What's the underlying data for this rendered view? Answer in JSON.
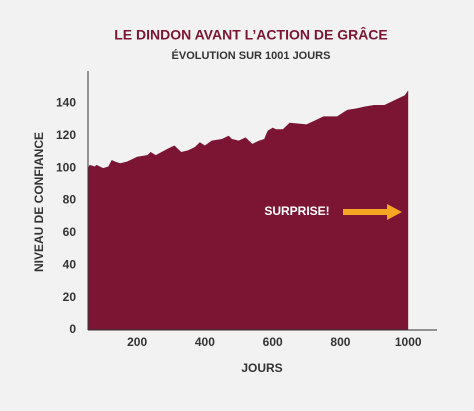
{
  "chart_data": {
    "type": "area",
    "title": "LE DINDON AVANT L’ACTION DE GRÂCE",
    "subtitle": "ÉVOLUTION SUR 1001 JOURS",
    "x_label": "JOURS",
    "y_label": "NIVEAU DE CONFIANCE",
    "annotation": "SURPRISE!",
    "color": "#7b1533",
    "annotation_color": "#f5a623",
    "x": [
      55,
      60,
      75,
      80,
      100,
      115,
      125,
      135,
      150,
      170,
      200,
      230,
      240,
      255,
      290,
      310,
      330,
      350,
      370,
      385,
      400,
      420,
      450,
      470,
      480,
      500,
      520,
      540,
      560,
      575,
      585,
      600,
      610,
      630,
      650,
      700,
      730,
      750,
      790,
      820,
      850,
      870,
      900,
      930,
      950,
      970,
      990,
      1000
    ],
    "values": [
      100,
      102,
      101,
      102,
      100,
      101,
      105,
      104,
      103,
      104,
      107,
      108,
      110,
      108,
      112,
      114,
      110,
      111,
      113,
      116,
      114,
      117,
      118,
      120,
      118,
      117,
      119,
      115,
      117,
      118,
      123,
      125,
      124,
      124,
      128,
      127,
      130,
      132,
      132,
      136,
      137,
      138,
      139,
      139,
      141,
      143,
      145,
      148
    ],
    "xlim": [
      55,
      1085
    ],
    "ylim": [
      0,
      160
    ],
    "xticks": [
      200,
      400,
      600,
      800,
      1000
    ],
    "yticks": [
      0,
      20,
      40,
      60,
      80,
      100,
      120,
      140
    ],
    "grid": false
  }
}
